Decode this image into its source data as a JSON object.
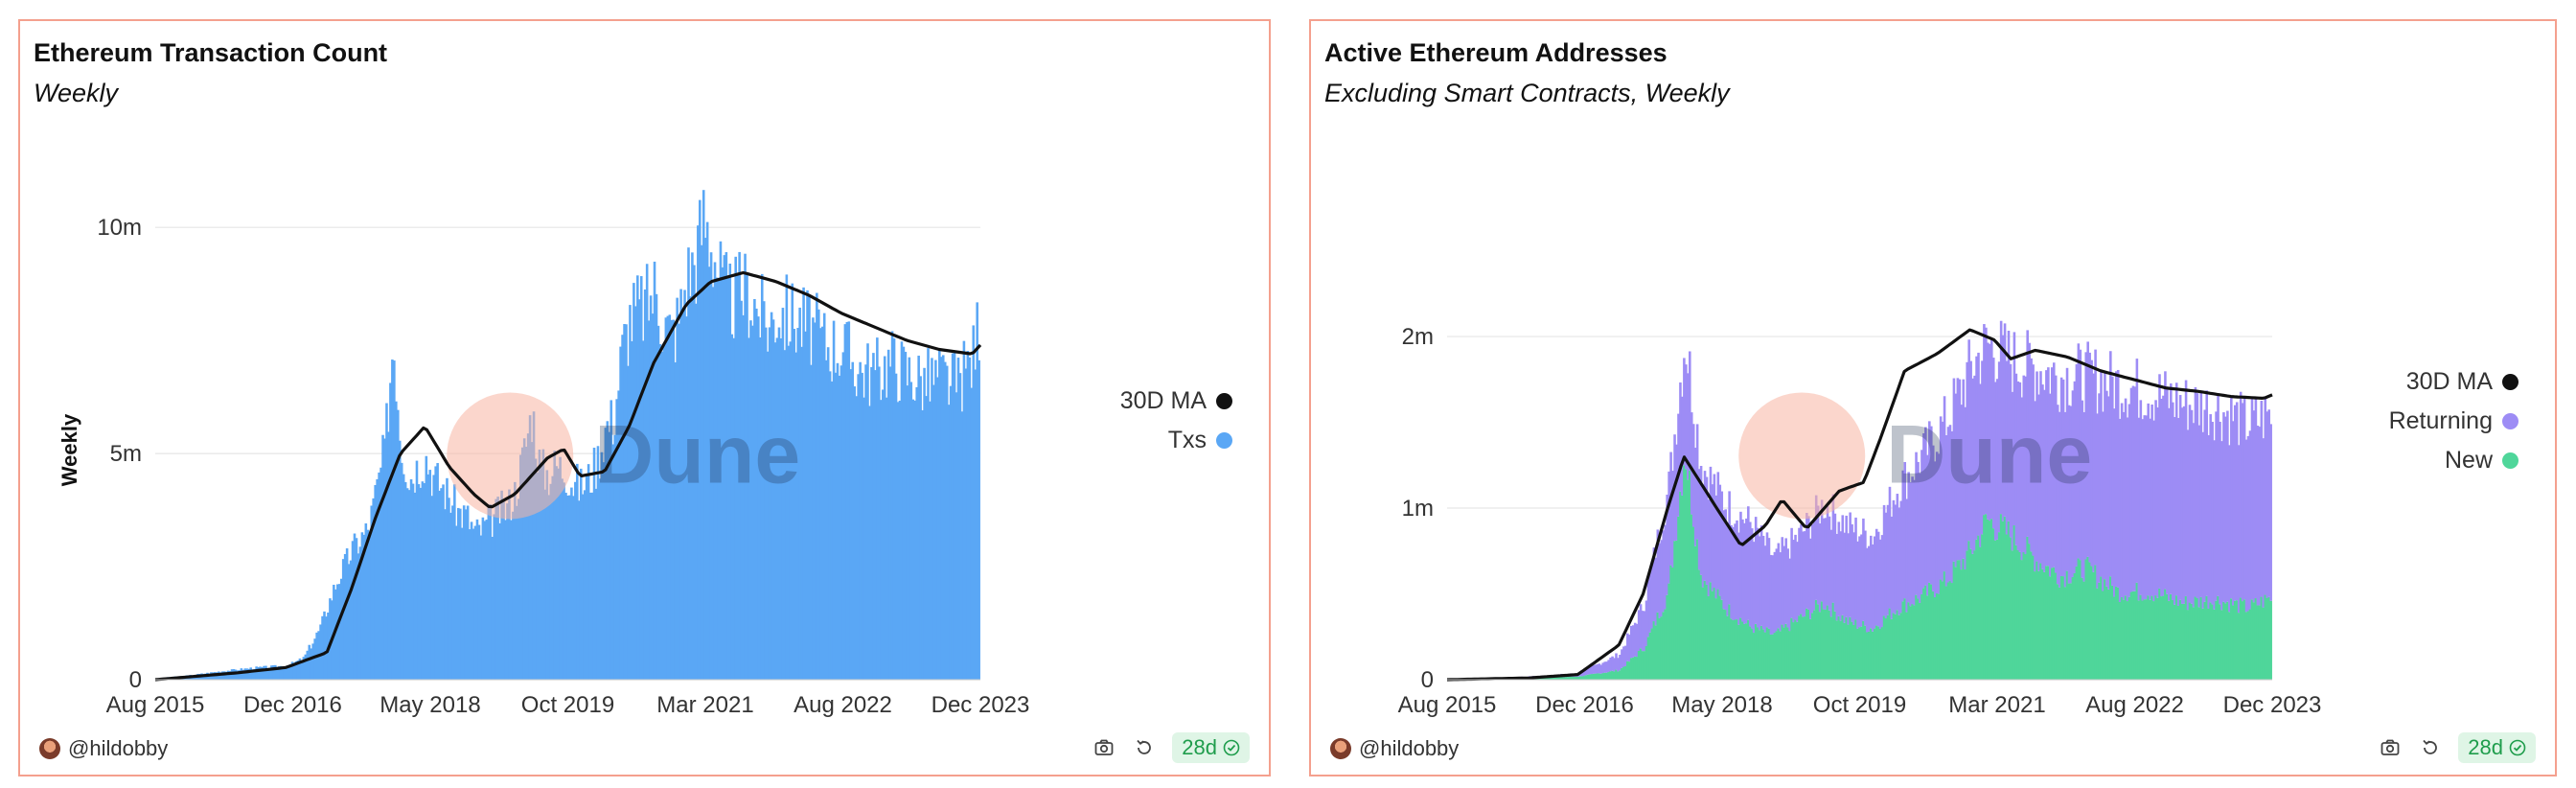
{
  "panels": [
    {
      "title": "Ethereum Transaction Count",
      "subtitle": "Weekly",
      "author": "@hildobby",
      "age_badge": "28d",
      "icons": [
        "camera-icon",
        "refresh-icon",
        "check-circle-icon"
      ]
    },
    {
      "title": "Active Ethereum Addresses",
      "subtitle": "Excluding Smart Contracts, Weekly",
      "author": "@hildobby",
      "age_badge": "28d",
      "icons": [
        "camera-icon",
        "refresh-icon",
        "check-circle-icon"
      ]
    }
  ],
  "watermark": "Dune",
  "colors": {
    "txs": "#5aa7f5",
    "returning": "#9d8cf5",
    "new": "#4fd69a",
    "ma": "#111111",
    "border": "#f4a08e",
    "grid": "#e6e6e6",
    "badge_text": "#1f9d4c"
  },
  "chart_data": [
    {
      "type": "bar",
      "title": "Ethereum Transaction Count",
      "subtitle": "Weekly",
      "ylabel": "Weekly",
      "ylim": [
        0,
        11000000
      ],
      "yticks": [
        0,
        5000000,
        10000000
      ],
      "ytick_labels": [
        "0",
        "5m",
        "10m"
      ],
      "xticks": [
        "Aug 2015",
        "Dec 2016",
        "May 2018",
        "Oct 2019",
        "Mar 2021",
        "Aug 2022",
        "Dec 2023"
      ],
      "x_range": [
        "2015-08",
        "2024-01"
      ],
      "grid": true,
      "legend_position": "right",
      "series": [
        {
          "name": "Txs",
          "kind": "bar",
          "color": "#5aa7f5",
          "dates": [
            "2015-08",
            "2015-12",
            "2016-04",
            "2016-08",
            "2016-12",
            "2017-02",
            "2017-04",
            "2017-06",
            "2017-08",
            "2017-10",
            "2017-12",
            "2018-01",
            "2018-02",
            "2018-03",
            "2018-04",
            "2018-05",
            "2018-06",
            "2018-07",
            "2018-08",
            "2018-09",
            "2018-10",
            "2018-11",
            "2018-12",
            "2019-01",
            "2019-02",
            "2019-03",
            "2019-04",
            "2019-05",
            "2019-06",
            "2019-07",
            "2019-08",
            "2019-09",
            "2019-10",
            "2019-11",
            "2019-12",
            "2020-01",
            "2020-02",
            "2020-03",
            "2020-04",
            "2020-05",
            "2020-06",
            "2020-07",
            "2020-08",
            "2020-09",
            "2020-10",
            "2020-11",
            "2020-12",
            "2021-01",
            "2021-02",
            "2021-03",
            "2021-04",
            "2021-05",
            "2021-06",
            "2021-07",
            "2021-08",
            "2021-09",
            "2021-10",
            "2021-11",
            "2021-12",
            "2022-02",
            "2022-04",
            "2022-06",
            "2022-08",
            "2022-10",
            "2022-12",
            "2023-02",
            "2023-04",
            "2023-06",
            "2023-08",
            "2023-10",
            "2023-12",
            "2024-01"
          ],
          "values": [
            30000,
            100000,
            200000,
            280000,
            330000,
            500000,
            1200000,
            2300000,
            3100000,
            3600000,
            5500000,
            8200000,
            5600000,
            4800000,
            5100000,
            5300000,
            4800000,
            4600000,
            4300000,
            4000000,
            3900000,
            3500000,
            3600000,
            3800000,
            4000000,
            4100000,
            4500000,
            5400000,
            6400000,
            5000000,
            4900000,
            5100000,
            5000000,
            4700000,
            4600000,
            4800000,
            5200000,
            6000000,
            6200000,
            7800000,
            8600000,
            8800000,
            8900000,
            9300000,
            8600000,
            8200000,
            8600000,
            9600000,
            10000000,
            11000000,
            10400000,
            9600000,
            9000000,
            9100000,
            9300000,
            9000000,
            8700000,
            8400000,
            8800000,
            8600000,
            8400000,
            8000000,
            7900000,
            7400000,
            7300000,
            7600000,
            7300000,
            7100000,
            7200000,
            7000000,
            7700000,
            9000000
          ]
        },
        {
          "name": "30D MA",
          "kind": "line",
          "color": "#111111",
          "dates": [
            "2015-08",
            "2016-06",
            "2016-12",
            "2017-05",
            "2017-08",
            "2017-11",
            "2018-02",
            "2018-05",
            "2018-08",
            "2018-11",
            "2019-01",
            "2019-04",
            "2019-08",
            "2019-10",
            "2019-12",
            "2020-03",
            "2020-06",
            "2020-09",
            "2021-01",
            "2021-04",
            "2021-08",
            "2021-12",
            "2022-04",
            "2022-08",
            "2022-12",
            "2023-04",
            "2023-08",
            "2023-12",
            "2024-01"
          ],
          "values": [
            0,
            150000,
            270000,
            600000,
            2000000,
            3600000,
            5000000,
            5600000,
            4700000,
            4100000,
            3800000,
            4100000,
            4900000,
            5100000,
            4500000,
            4600000,
            5600000,
            7000000,
            8300000,
            8800000,
            9000000,
            8800000,
            8500000,
            8100000,
            7800000,
            7500000,
            7300000,
            7200000,
            7400000
          ]
        }
      ]
    },
    {
      "type": "area",
      "title": "Active Ethereum Addresses",
      "subtitle": "Excluding Smart Contracts, Weekly",
      "ylim": [
        0,
        2900000
      ],
      "yticks": [
        0,
        1000000,
        2000000
      ],
      "ytick_labels": [
        "0",
        "1m",
        "2m"
      ],
      "xticks": [
        "Aug 2015",
        "Dec 2016",
        "May 2018",
        "Oct 2019",
        "Mar 2021",
        "Aug 2022",
        "Dec 2023"
      ],
      "x_range": [
        "2015-08",
        "2024-01"
      ],
      "grid": true,
      "stacked": true,
      "legend_position": "right",
      "series": [
        {
          "name": "New",
          "kind": "area",
          "color": "#4fd69a",
          "dates": [
            "2015-08",
            "2016-06",
            "2016-12",
            "2017-05",
            "2017-08",
            "2017-11",
            "2018-01",
            "2018-03",
            "2018-06",
            "2018-09",
            "2018-12",
            "2019-03",
            "2019-06",
            "2019-09",
            "2019-12",
            "2020-03",
            "2020-06",
            "2020-09",
            "2020-12",
            "2021-02",
            "2021-05",
            "2021-08",
            "2021-11",
            "2022-02",
            "2022-06",
            "2022-10",
            "2023-02",
            "2023-06",
            "2023-10",
            "2024-01"
          ],
          "values": [
            0,
            10000,
            20000,
            60000,
            200000,
            550000,
            1450000,
            650000,
            450000,
            330000,
            280000,
            380000,
            480000,
            360000,
            320000,
            450000,
            520000,
            620000,
            800000,
            1000000,
            900000,
            750000,
            650000,
            700000,
            550000,
            550000,
            480000,
            500000,
            450000,
            520000
          ]
        },
        {
          "name": "Returning",
          "kind": "area",
          "color": "#9d8cf5",
          "dates": [
            "2015-08",
            "2016-06",
            "2016-12",
            "2017-05",
            "2017-08",
            "2017-11",
            "2018-01",
            "2018-03",
            "2018-06",
            "2018-09",
            "2018-12",
            "2019-03",
            "2019-06",
            "2019-09",
            "2019-12",
            "2020-03",
            "2020-06",
            "2020-09",
            "2020-12",
            "2021-02",
            "2021-05",
            "2021-08",
            "2021-11",
            "2022-02",
            "2022-06",
            "2022-10",
            "2023-02",
            "2023-06",
            "2023-10",
            "2024-01"
          ],
          "values": [
            0,
            10000,
            20000,
            100000,
            280000,
            650000,
            700000,
            700000,
            650000,
            650000,
            480000,
            520000,
            620000,
            600000,
            580000,
            750000,
            880000,
            1000000,
            1150000,
            1100000,
            1100000,
            1200000,
            1250000,
            1200000,
            1300000,
            1250000,
            1250000,
            1200000,
            1150000,
            1150000
          ]
        },
        {
          "name": "30D MA",
          "kind": "line",
          "color": "#111111",
          "dates": [
            "2015-08",
            "2016-06",
            "2016-12",
            "2017-05",
            "2017-08",
            "2017-11",
            "2018-01",
            "2018-03",
            "2018-05",
            "2018-08",
            "2018-11",
            "2019-01",
            "2019-04",
            "2019-08",
            "2019-11",
            "2020-01",
            "2020-04",
            "2020-08",
            "2020-12",
            "2021-03",
            "2021-05",
            "2021-08",
            "2021-12",
            "2022-04",
            "2022-08",
            "2022-12",
            "2023-04",
            "2023-08",
            "2023-12",
            "2024-01"
          ],
          "values": [
            0,
            10000,
            30000,
            200000,
            500000,
            1000000,
            1300000,
            1150000,
            1000000,
            780000,
            900000,
            1050000,
            880000,
            1100000,
            1150000,
            1400000,
            1800000,
            1900000,
            2040000,
            1980000,
            1870000,
            1920000,
            1880000,
            1800000,
            1750000,
            1700000,
            1680000,
            1650000,
            1640000,
            1660000
          ]
        }
      ]
    }
  ]
}
